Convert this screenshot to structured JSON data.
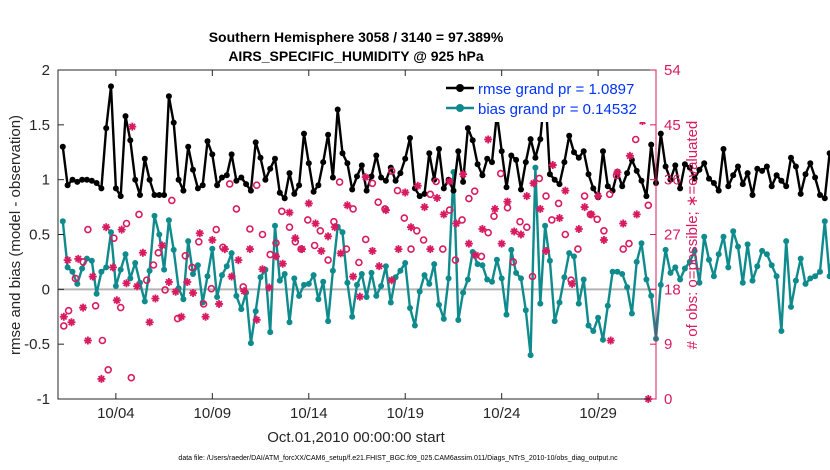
{
  "chart_data": {
    "type": "line",
    "title": "Southern Hemisphere 3058 / 3140 = 97.389%",
    "subtitle": "AIRS_SPECIFIC_HUMIDITY @ 925 hPa",
    "xlabel": "Oct.01,2010 00:00:00 start",
    "ylabel": "rmse and bias (model - observation)",
    "ylabel_right": "# of obs: o=possible; ∗=evaluated",
    "xlim": [
      1.0,
      32.0
    ],
    "ylim": [
      -1,
      2
    ],
    "ylim_right": [
      0,
      54
    ],
    "x_ticks": [
      4,
      9,
      14,
      19,
      24,
      29
    ],
    "x_tick_labels": [
      "10/04",
      "10/09",
      "10/14",
      "10/19",
      "10/24",
      "10/29"
    ],
    "y_ticks": [
      -1,
      -0.5,
      0,
      0.5,
      1,
      1.5,
      2
    ],
    "y_tick_labels": [
      "-1",
      "-0.5",
      "0",
      "0.5",
      "1",
      "1.5",
      "2"
    ],
    "y_ticks_right": [
      0,
      9,
      18,
      27,
      36,
      45,
      54
    ],
    "y_tick_labels_right": [
      "0",
      "9",
      "18",
      "27",
      "36",
      "45",
      "54"
    ],
    "legend": [
      "rmse grand pr = 1.0897",
      "bias grand pr = 0.14532"
    ],
    "legend_position": "top-right",
    "colors": {
      "rmse": "#000000",
      "bias": "#0f8b8d",
      "obs": "#D81B60",
      "zero_line": "#b3b3b3",
      "legend_text": "#0033ff"
    },
    "series": [
      {
        "name": "rmse",
        "x_start": 1.25,
        "dx": 0.25,
        "values": [
          1.3,
          0.95,
          1.0,
          0.98,
          1.0,
          1.0,
          0.99,
          0.97,
          0.92,
          1.47,
          1.85,
          0.92,
          0.85,
          1.58,
          1.36,
          1.0,
          0.86,
          1.19,
          1.0,
          0.86,
          0.86,
          0.86,
          1.76,
          1.52,
          1.0,
          0.9,
          1.3,
          1.09,
          0.92,
          0.95,
          1.35,
          1.23,
          0.95,
          1.02,
          1.04,
          1.23,
          0.99,
          1.02,
          0.96,
          0.9,
          1.34,
          1.2,
          1.0,
          1.1,
          1.19,
          0.88,
          0.83,
          1.06,
          0.87,
          0.95,
          1.42,
          1.15,
          0.89,
          0.95,
          1.16,
          1.41,
          1.02,
          1.64,
          1.24,
          1.15,
          0.91,
          1.03,
          1.13,
          0.9,
          1.03,
          1.22,
          1.02,
          0.99,
          1.11,
          0.99,
          1.06,
          1.19,
          1.38,
          0.92,
          0.85,
          0.87,
          1.24,
          1.0,
          1.28,
          0.92,
          1.0,
          0.9,
          1.26,
          0.98,
          1.47,
          1.36,
          1.14,
          1.04,
          1.19,
          1.16,
          1.6,
          1.26,
          0.93,
          1.22,
          1.18,
          0.91,
          1.16,
          1.37,
          1.2,
          1.37,
          1.83,
          1.05,
          1.0,
          0.96,
          1.16,
          1.4,
          1.25,
          1.2,
          1.26,
          1.05,
          0.92,
          0.84,
          1.26,
          0.94,
          0.9,
          1.07,
          0.94,
          1.06,
          1.18,
          1.08,
          0.99,
          0.85,
          1.32,
          0.97,
          1.42,
          1.12,
          1.0,
          1.13,
          0.92,
          1.14,
          1.11,
          1.01,
          1.09,
          1.15,
          1.01,
          0.97,
          0.9,
          1.28,
          0.94,
          1.04,
          1.12,
          0.96,
          1.06,
          0.86,
          1.1,
          1.08,
          1.12,
          0.94,
          1.04,
          0.99,
          0.94,
          1.2,
          1.12,
          0.87,
          1.05,
          1.15,
          1.02,
          0.86,
          0.83,
          1.24,
          1.2,
          1.0,
          0.92,
          0.86,
          1.12,
          1.11,
          1.27,
          1.37,
          0.86,
          0.85
        ]
      },
      {
        "name": "bias",
        "x_start": 1.25,
        "dx": 0.25,
        "values": [
          0.62,
          0.2,
          0.16,
          0.05,
          0.19,
          0.28,
          0.26,
          -0.04,
          0.16,
          0.2,
          0.52,
          0.03,
          0.18,
          0.32,
          0.1,
          0.24,
          0.06,
          -0.11,
          0.17,
          0.67,
          0.5,
          0.18,
          0.63,
          0.36,
          0.01,
          -0.09,
          0.44,
          0.14,
          0.22,
          -0.12,
          0.12,
          0.37,
          -0.07,
          0.13,
          0.21,
          0.33,
          -0.06,
          -0.18,
          -0.03,
          -0.49,
          -0.2,
          0.11,
          0.18,
          -0.39,
          0.58,
          0.08,
          0.14,
          -0.3,
          0.1,
          -0.06,
          0.04,
          0.05,
          0.13,
          -0.09,
          0.07,
          -0.29,
          0.17,
          0.57,
          0.52,
          0.06,
          -0.25,
          0.04,
          0.14,
          -0.07,
          0.15,
          -0.06,
          0.03,
          0.21,
          -0.12,
          0.11,
          0.17,
          0.24,
          -0.17,
          -0.33,
          -0.02,
          0.13,
          0.05,
          0.23,
          -0.14,
          -0.27,
          0.1,
          1.07,
          -0.28,
          -0.03,
          0.09,
          0.34,
          0.23,
          0.22,
          0.09,
          0.07,
          0.27,
          0.1,
          -0.23,
          0.36,
          0.15,
          0.1,
          -0.19,
          -0.6,
          1.11,
          -0.13,
          0.58,
          0.26,
          -0.29,
          -0.12,
          0.11,
          0.33,
          0.3,
          -0.13,
          0.09,
          -0.33,
          -0.38,
          -0.26,
          -0.46,
          -0.15,
          0.16,
          0.16,
          0.14,
          0.02,
          -0.22,
          0.25,
          0.42,
          0.09,
          -0.06,
          -0.45,
          0.04,
          0.36,
          0.15,
          0.2,
          0.09,
          0.19,
          0.25,
          0.35,
          0.06,
          0.48,
          0.27,
          0.12,
          0.32,
          0.48,
          0.2,
          0.53,
          0.39,
          0.06,
          0.41,
          0.08,
          0.21,
          0.35,
          0.32,
          0.22,
          0.12,
          -0.38,
          0.44,
          -0.16,
          0.08,
          0.28,
          0.05,
          0.1,
          0.12,
          0.16,
          0.62,
          0.12,
          0.48,
          0.58,
          0.06,
          0.46,
          0.36,
          0.08,
          -0.1,
          0.0,
          0.1,
          -0.08
        ]
      }
    ],
    "obs_possible": {
      "x": [
        1.3,
        1.55,
        1.9,
        2.3,
        2.55,
        2.95,
        3.3,
        3.6,
        3.9,
        4.25,
        4.55,
        4.8,
        5.2,
        5.6,
        5.95,
        6.2,
        6.55,
        6.9,
        7.2,
        7.6,
        7.95,
        8.3,
        8.55,
        8.95,
        9.2,
        9.55,
        9.9,
        10.25,
        10.6,
        10.95,
        11.3,
        11.6,
        12.0,
        12.3,
        12.6,
        13.0,
        13.3,
        13.6,
        13.95,
        14.3,
        14.6,
        15.0,
        15.3,
        15.6,
        15.95,
        16.3,
        16.6,
        16.95,
        17.3,
        17.6,
        17.95,
        18.3,
        18.6,
        18.95,
        19.3,
        19.6,
        19.95,
        20.3,
        20.6,
        20.95,
        21.3,
        21.6,
        21.95,
        22.3,
        22.6,
        22.95,
        23.3,
        23.6,
        23.95,
        24.3,
        24.6,
        24.95,
        25.3,
        25.6,
        25.95,
        26.3,
        26.6,
        26.95,
        27.3,
        27.6,
        27.95,
        28.3,
        28.6,
        28.95,
        29.3,
        29.6,
        29.95,
        30.3,
        30.6,
        30.95,
        31.3,
        31.6
      ],
      "values": [
        12,
        14.5,
        19.8,
        22.5,
        27.8,
        15.3,
        9.6,
        4.8,
        26.4,
        15,
        28.8,
        3.5,
        30.3,
        19.5,
        22,
        24,
        17.9,
        32.6,
        13.2,
        23.5,
        21.6,
        25.8,
        15.6,
        18.1,
        27.8,
        24.9,
        35.3,
        31.2,
        18.4,
        27.9,
        35.1,
        27,
        23.7,
        25.6,
        30.8,
        28.2,
        25.8,
        24.6,
        29.4,
        25.2,
        27.6,
        22.8,
        29.1,
        35.6,
        24.6,
        31.2,
        22.4,
        26.2,
        35.4,
        32.3,
        31.2,
        37.4,
        34.2,
        29.7,
        24.6,
        27.6,
        26.1,
        33.6,
        35.7,
        24.6,
        31,
        22.8,
        29.4,
        32.9,
        34.1,
        23.4,
        27.3,
        30,
        37,
        31.4,
        22.5,
        29.1,
        28.2,
        20.1,
        36.2,
        33.3,
        29.4,
        32.1,
        27,
        19.5,
        24.6,
        33.3,
        30.3,
        29.5,
        27.6,
        33.6,
        36.7,
        24.6,
        25.5,
        42.6,
        48.6,
        31.8
      ]
    },
    "obs_evaluated": {
      "x": [
        1.3,
        1.5,
        1.7,
        2.05,
        2.3,
        2.55,
        2.8,
        3.25,
        3.5,
        3.85,
        4.05,
        4.3,
        4.55,
        4.85,
        5.1,
        5.4,
        5.75,
        6.05,
        6.4,
        6.75,
        7.1,
        7.4,
        7.7,
        8.0,
        8.35,
        8.65,
        9.0,
        9.35,
        9.65,
        10.0,
        10.35,
        10.65,
        10.95,
        11.3,
        11.6,
        11.95,
        12.3,
        12.65,
        13.0,
        13.3,
        13.65,
        14.0,
        14.35,
        14.65,
        15.0,
        15.35,
        15.65,
        16.0,
        16.3,
        16.65,
        16.95,
        17.3,
        17.65,
        18.0,
        18.3,
        18.65,
        19.0,
        19.3,
        19.65,
        20.0,
        20.3,
        20.65,
        21.0,
        21.3,
        21.65,
        22.0,
        22.3,
        22.65,
        23.0,
        23.3,
        23.65,
        24.0,
        24.3,
        24.65,
        25.0,
        25.3,
        25.65,
        26.0,
        26.3,
        26.65,
        27.0,
        27.3,
        27.65,
        28.0,
        28.3,
        28.65,
        29.0,
        29.3,
        29.65,
        30.0,
        30.3,
        30.65,
        31.0,
        31.3,
        31.6
      ],
      "values": [
        13.5,
        22.8,
        12.6,
        23,
        15,
        9.6,
        20.1,
        3.3,
        28.2,
        21.6,
        16.2,
        27.8,
        19,
        44.7,
        18.5,
        24,
        12.6,
        16.5,
        25.2,
        19.2,
        17.6,
        13.5,
        19.2,
        17.4,
        27.2,
        13.5,
        26.1,
        15.6,
        24.6,
        20.1,
        22.8,
        17.7,
        24.6,
        13,
        21.3,
        18.3,
        23.4,
        22.2,
        30.6,
        26.4,
        24.6,
        32.1,
        28.8,
        24.3,
        26.7,
        28.2,
        23.9,
        31.8,
        20.1,
        16.8,
        36.4,
        24.3,
        21.8,
        31,
        19.5,
        24.6,
        33.9,
        28.2,
        35,
        31.5,
        24.6,
        33,
        30.3,
        35.7,
        28.8,
        36.9,
        25.5,
        23.6,
        27.9,
        42.6,
        31.2,
        25.5,
        32.4,
        27.5,
        27,
        33.3,
        35.4,
        31.2,
        24.3,
        38.4,
        29.7,
        34.2,
        18.9,
        27.9,
        31.5,
        30.3,
        33.3,
        26.1,
        9.6,
        37.2,
        28.8,
        39.9,
        30.3,
        45.6,
        0
      ]
    }
  },
  "footer": "data file: /Users/raeder/DAI/ATM_forcXX/CAM6_setup/f.e21.FHIST_BGC.f09_025.CAM6assim.011/Diags_NTrS_2010-10/obs_diag_output.nc"
}
